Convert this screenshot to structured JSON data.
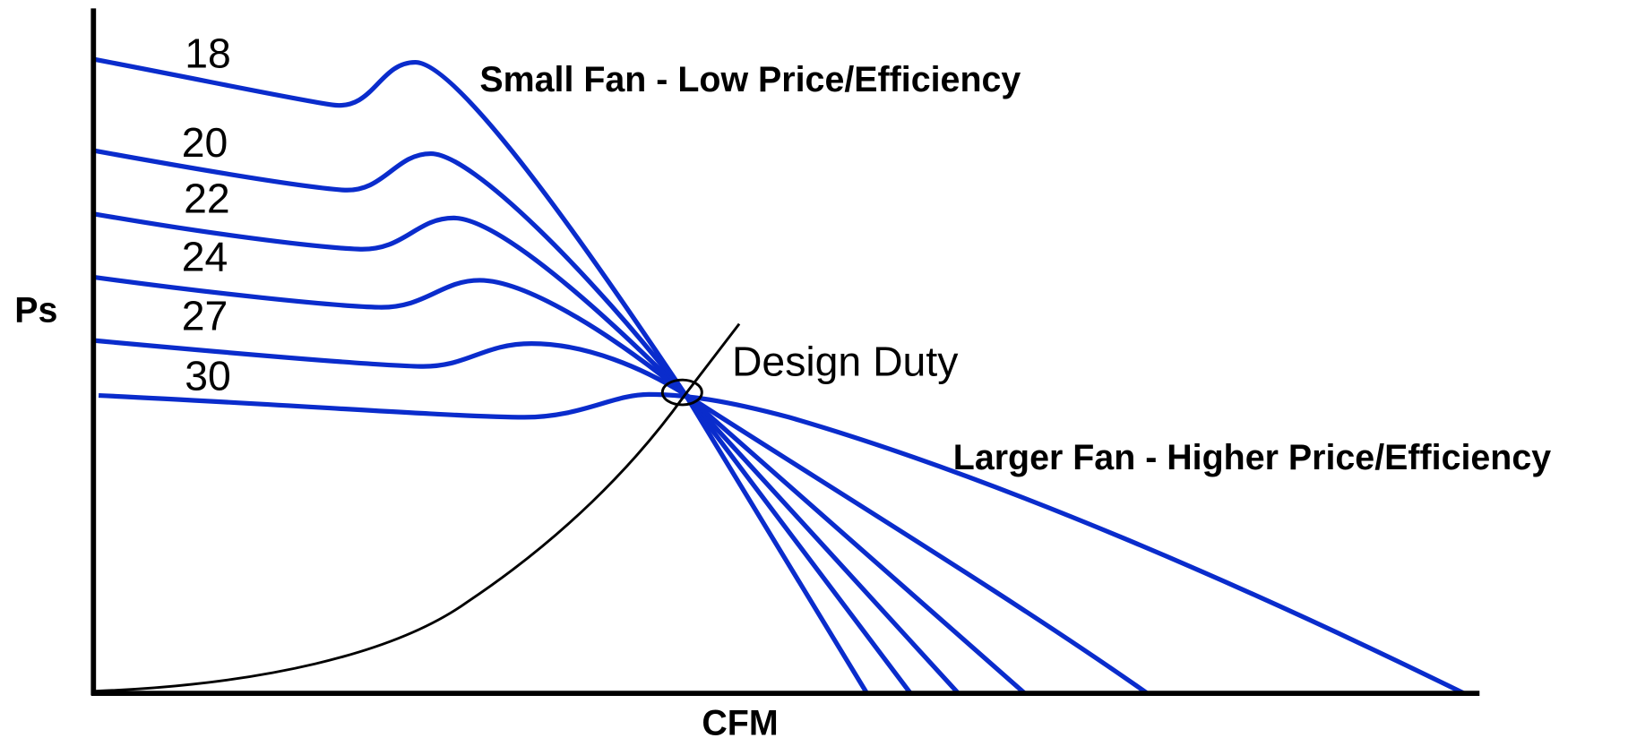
{
  "axes": {
    "y_label": "Ps",
    "x_label": "CFM"
  },
  "curves": {
    "labels": [
      "18",
      "20",
      "22",
      "24",
      "27",
      "30"
    ]
  },
  "annotations": {
    "small_fan": "Small Fan - Low Price/Efficiency",
    "design_duty": "Design Duty",
    "larger_fan": "Larger Fan - Higher Price/Efficiency"
  }
}
